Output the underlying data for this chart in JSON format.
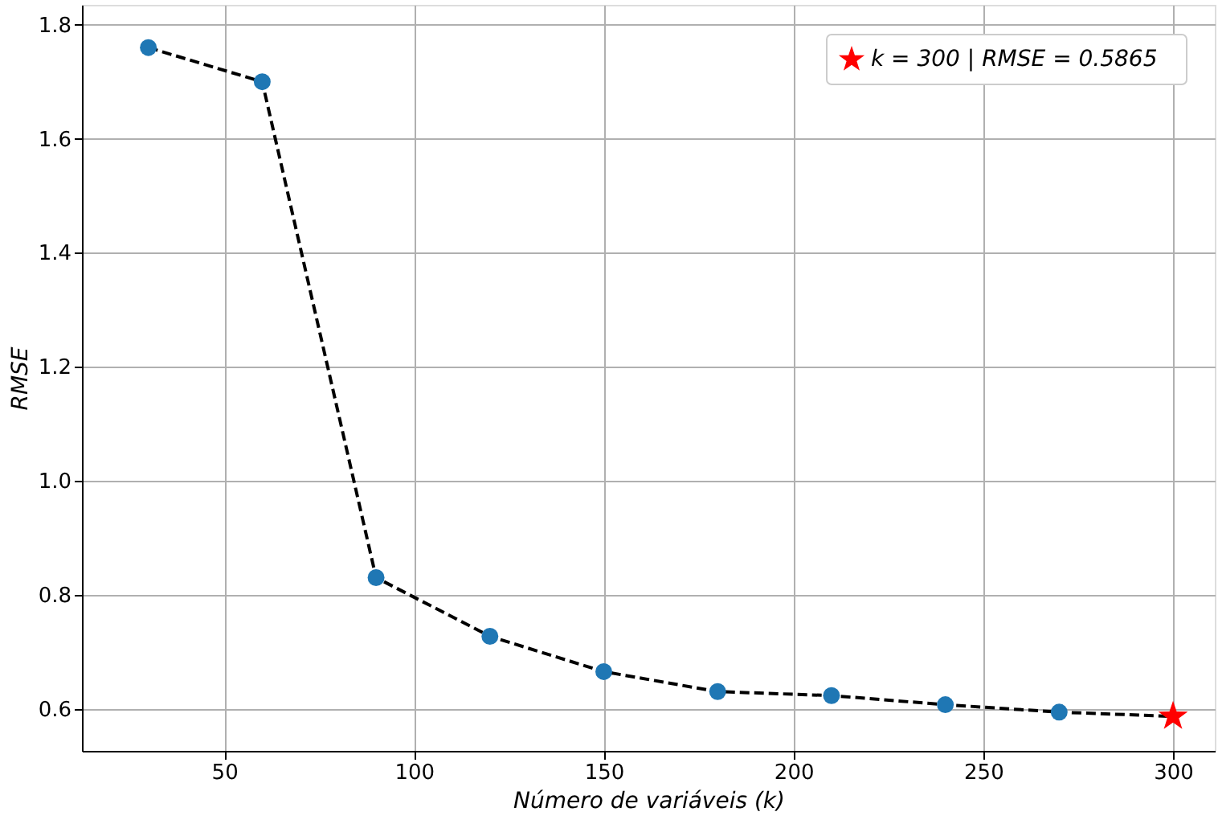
{
  "chart_data": {
    "type": "line",
    "xlabel": "Número  de  variáveis  (k)",
    "ylabel": "RMSE",
    "x": [
      30,
      60,
      90,
      120,
      150,
      180,
      210,
      240,
      270,
      300
    ],
    "xlim": [
      12.5,
      311
    ],
    "xticks": [
      50,
      100,
      150,
      200,
      250,
      300
    ],
    "ylim": [
      0.526,
      1.835
    ],
    "yticks": [
      0.6,
      0.8,
      {
        "value": 1,
        "label": "1.0"
      },
      1.2,
      1.4,
      1.6,
      1.8
    ],
    "grid": true,
    "legend": "top right",
    "series": [
      {
        "color": "#000000",
        "line_style": "dashed",
        "marker": "none",
        "values": [
          1.76,
          1.7,
          0.83,
          0.727,
          0.665,
          0.63,
          0.623,
          0.607,
          0.594,
          0.5865
        ]
      },
      {
        "type": "scatter",
        "color": "#1f77b4",
        "marker": "circle",
        "values": [
          1.76,
          1.7,
          0.83,
          0.727,
          0.665,
          0.63,
          0.623,
          0.607,
          0.594,
          null
        ]
      },
      {
        "type": "scatter",
        "name": "k = 300  |  RMSE = 0.5865",
        "color": "#ff0000",
        "marker": "star",
        "values": [
          null,
          null,
          null,
          null,
          null,
          null,
          null,
          null,
          null,
          0.5865
        ]
      }
    ]
  }
}
